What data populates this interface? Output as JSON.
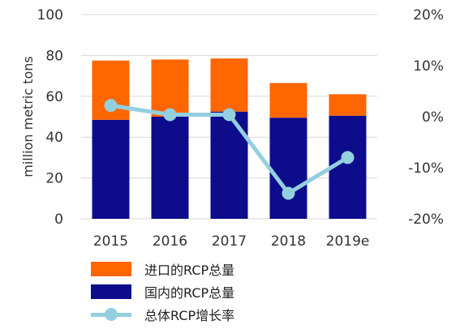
{
  "chart_data": {
    "type": "bar",
    "categories": [
      "2015",
      "2016",
      "2017",
      "2018",
      "2019e"
    ],
    "series": [
      {
        "name": "国内的RCP总量",
        "kind": "stacked-bar",
        "color": "#0d0d8c",
        "values": [
          48.5,
          50,
          52.5,
          49.5,
          50.5
        ]
      },
      {
        "name": "进口的RCP总量",
        "kind": "stacked-bar",
        "color": "#ff6600",
        "values": [
          29,
          28,
          26,
          17,
          10.5
        ]
      },
      {
        "name": "总体RCP增长率",
        "kind": "line",
        "axis": "right",
        "color": "#93cfdf",
        "values": [
          2.2,
          0.4,
          0.4,
          -15,
          -8
        ]
      }
    ],
    "ylabel": "million metric tons",
    "ylim": [
      0,
      100
    ],
    "y_ticks": [
      "0",
      "20",
      "40",
      "60",
      "80",
      "100"
    ],
    "y2lim": [
      -20,
      20
    ],
    "y2_ticks": [
      "-20%",
      "-10%",
      "0%",
      "10%",
      "20%"
    ],
    "grid": true,
    "legend_position": "bottom"
  }
}
